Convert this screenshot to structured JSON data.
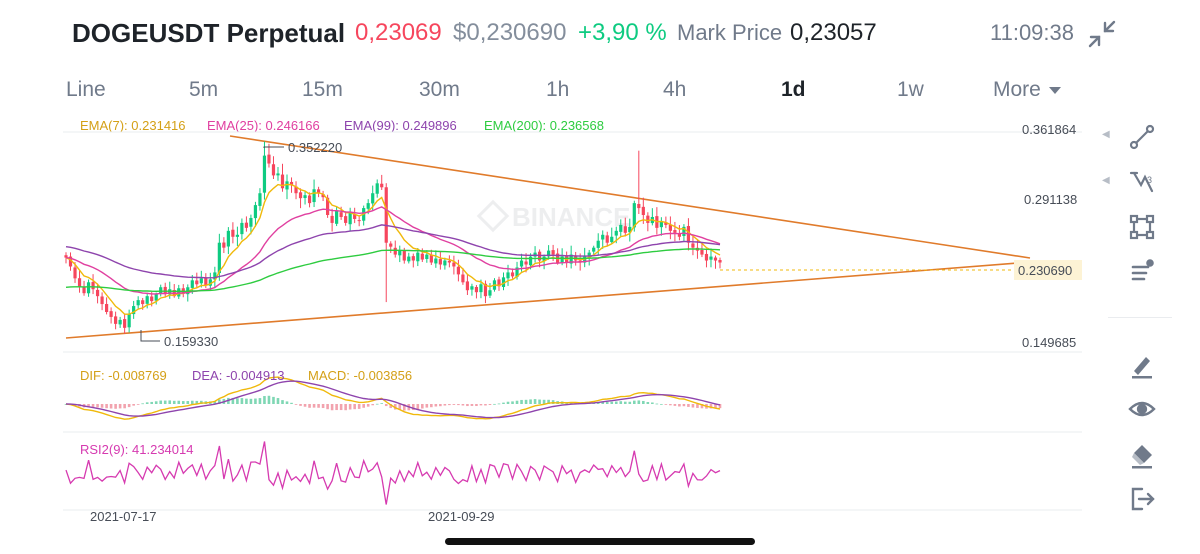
{
  "header": {
    "symbol": "DOGEUSDT Perpetual",
    "last_price": "0,23069",
    "usd_price": "$0,230690",
    "change": "+3,90 %",
    "mark_price_label": "Mark Price",
    "mark_price_value": "0,23057",
    "clock": "11:09:38",
    "collapse_icon": "collapse-icon"
  },
  "intervals": [
    "Line",
    "5m",
    "15m",
    "30m",
    "1h",
    "4h",
    "1d",
    "1w",
    "More"
  ],
  "active_interval": "1d",
  "legend": {
    "ema7": "EMA(7): 0.231416",
    "ema25": "EMA(25): 0.246166",
    "ema99": "EMA(99): 0.249896",
    "ema200": "EMA(200): 0.236568"
  },
  "price_axis": {
    "labels": [
      "0.361864",
      "0.291138",
      "0.149685"
    ],
    "current": "0.230690"
  },
  "annotations": {
    "high": "0.352220",
    "low": "0.159330"
  },
  "macd": {
    "dif": "DIF: -0.008769",
    "dea": "DEA: -0.004913",
    "macd": "MACD: -0.003856"
  },
  "rsi": {
    "label": "RSI2(9): 41.234014"
  },
  "dates": [
    "2021-07-17",
    "2021-09-29"
  ],
  "watermark": "BINANCE",
  "colors": {
    "up": "#0ecb81",
    "down": "#f6465d",
    "ema7": "#f0b90b",
    "ema25": "#e040a0",
    "ema99": "#8e44ad",
    "ema200": "#2ecc40",
    "trendline": "#e07b2b",
    "rsi": "#d63ab0"
  },
  "toolbar": [
    "trendline-icon",
    "fibonacci-icon",
    "rectangle-icon",
    "parallel-lines-icon",
    "brush-icon",
    "eye-icon",
    "eraser-icon",
    "exit-icon"
  ],
  "chart_data": {
    "type": "candlestick",
    "annotations": [
      {
        "label": "high",
        "value": 0.35222
      },
      {
        "label": "low",
        "value": 0.15933
      }
    ],
    "ylim": [
      0.149685,
      0.361864
    ],
    "current_price": 0.23069,
    "x_tick_labels": [
      "2021-07-17",
      "2021-09-29"
    ],
    "closes": [
      0.235,
      0.226,
      0.214,
      0.205,
      0.199,
      0.21,
      0.203,
      0.196,
      0.188,
      0.18,
      0.175,
      0.168,
      0.172,
      0.164,
      0.178,
      0.186,
      0.192,
      0.188,
      0.196,
      0.191,
      0.198,
      0.205,
      0.198,
      0.203,
      0.196,
      0.204,
      0.199,
      0.205,
      0.212,
      0.208,
      0.214,
      0.207,
      0.213,
      0.22,
      0.25,
      0.245,
      0.262,
      0.256,
      0.258,
      0.27,
      0.265,
      0.275,
      0.288,
      0.3,
      0.338,
      0.33,
      0.318,
      0.32,
      0.305,
      0.312,
      0.308,
      0.3,
      0.295,
      0.298,
      0.29,
      0.304,
      0.3,
      0.296,
      0.278,
      0.27,
      0.282,
      0.276,
      0.27,
      0.28,
      0.274,
      0.272,
      0.285,
      0.29,
      0.3,
      0.31,
      0.306,
      0.25,
      0.246,
      0.238,
      0.242,
      0.232,
      0.236,
      0.232,
      0.24,
      0.233,
      0.238,
      0.23,
      0.234,
      0.228,
      0.232,
      0.23,
      0.226,
      0.218,
      0.21,
      0.202,
      0.206,
      0.2,
      0.208,
      0.196,
      0.202,
      0.212,
      0.206,
      0.215,
      0.22,
      0.216,
      0.225,
      0.232,
      0.228,
      0.236,
      0.24,
      0.232,
      0.236,
      0.242,
      0.238,
      0.23,
      0.236,
      0.23,
      0.238,
      0.232,
      0.23,
      0.236,
      0.24,
      0.245,
      0.252,
      0.258,
      0.25,
      0.256,
      0.262,
      0.268,
      0.26,
      0.266,
      0.29,
      0.285,
      0.278,
      0.27,
      0.276,
      0.265,
      0.272,
      0.268,
      0.262,
      0.26,
      0.256,
      0.266,
      0.25,
      0.245,
      0.242,
      0.238,
      0.232,
      0.236,
      0.232,
      0.23
    ]
  }
}
